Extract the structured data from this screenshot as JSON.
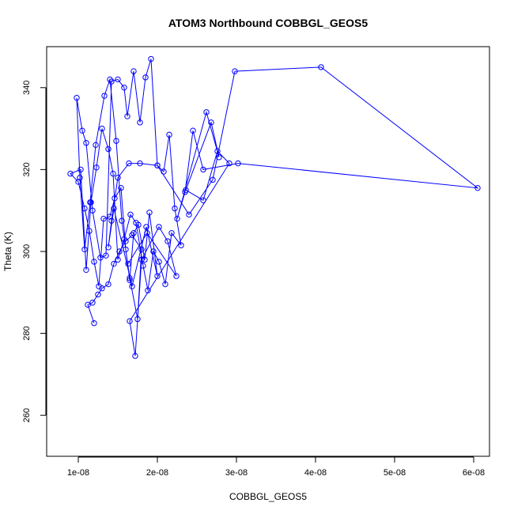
{
  "chart_data": {
    "type": "line",
    "title": "ATOM3 Northbound COBBGL_GEOS5",
    "xlabel": "COBBGL_GEOS5",
    "ylabel": "Theta (K)",
    "xlim": [
      6e-09,
      6.2e-08
    ],
    "ylim": [
      250,
      350
    ],
    "x_ticks": [
      1e-08,
      2e-08,
      3e-08,
      4e-08,
      5e-08,
      6e-08
    ],
    "x_tick_labels": [
      "1e-08",
      "2e-08",
      "3e-08",
      "4e-08",
      "5e-08",
      "6e-08"
    ],
    "y_ticks": [
      260,
      280,
      300,
      320,
      340
    ],
    "y_tick_labels": [
      "260",
      "280",
      "300",
      "320",
      "340"
    ],
    "grid": false,
    "markers": "open-circle",
    "color": "#0000ff",
    "series": [
      {
        "x": [
          1.2e-08,
          1.12e-08,
          1.18e-08,
          1.25e-08,
          1.3e-08,
          1.38e-08,
          1.45e-08,
          1.52e-08,
          1.6e-08,
          1.68e-08,
          1.8e-08,
          1.75e-08,
          1.65e-08,
          1.55e-08,
          1.48e-08,
          1.4e-08,
          1.33e-08,
          1.22e-08,
          1.15e-08,
          1.08e-08,
          1.02e-08,
          9.8e-09,
          1.05e-08,
          1.1e-08,
          1.18e-08,
          1.28e-08,
          1.35e-08,
          1.42e-08,
          1.5e-08,
          1.58e-08,
          1.62e-08,
          1.7e-08,
          1.78e-08,
          1.85e-08,
          1.92e-08,
          2e-08,
          2.08e-08,
          2.15e-08,
          2.22e-08,
          2.3e-08,
          2.18e-08,
          2.1e-08,
          2.02e-08,
          1.95e-08,
          1.88e-08,
          1.82e-08,
          1.73e-08,
          1.66e-08,
          1.58e-08,
          1.5e-08,
          1.44e-08,
          1.38e-08,
          1.3e-08,
          1.23e-08,
          1.16e-08,
          1.1e-08,
          1.03e-08,
          9e-09,
          1e-08,
          1.08e-08,
          1.14e-08,
          1.2e-08,
          1.26e-08,
          1.32e-08,
          1.4e-08,
          1.46e-08,
          1.54e-08,
          1.6e-08,
          1.65e-08,
          1.7e-08,
          1.76e-08,
          1.84e-08,
          1.9e-08,
          2e-08,
          1.86e-08,
          1.68e-08,
          1.45e-08,
          1.38e-08,
          1.42e-08,
          1.5e-08,
          1.64e-08,
          1.78e-08,
          2e-08,
          2.4e-08,
          2.7e-08,
          2.98e-08,
          4.07e-08,
          6.05e-08,
          3.02e-08,
          2.58e-08,
          2.45e-08,
          2.35e-08,
          2.25e-08,
          2.62e-08,
          2.78e-08,
          2.68e-08,
          2.36e-08,
          2.58e-08,
          2.76e-08,
          2.91e-08,
          1.65e-08,
          1.72e-08,
          1.8e-08,
          2.02e-08,
          2.13e-08,
          2.24e-08,
          1.87e-08,
          1.63e-08
        ],
        "y": [
          282.5,
          287.0,
          287.5,
          289.5,
          291.0,
          292.0,
          297.0,
          300.0,
          302.5,
          304.0,
          300.5,
          283.5,
          293.5,
          307.5,
          327.0,
          342.0,
          338.0,
          326.0,
          312.0,
          300.5,
          318.0,
          337.5,
          329.5,
          326.5,
          310.0,
          298.5,
          299.0,
          341.5,
          342.0,
          340.0,
          333.0,
          344.0,
          331.5,
          342.5,
          347.0,
          321.0,
          319.5,
          328.5,
          310.5,
          301.5,
          304.5,
          292.0,
          297.5,
          300.0,
          290.5,
          296.5,
          307.0,
          309.0,
          303.0,
          298.0,
          319.0,
          325.0,
          330.0,
          320.5,
          312.0,
          295.5,
          320.0,
          319.0,
          317.0,
          310.5,
          305.0,
          297.5,
          291.5,
          308.0,
          308.5,
          313.0,
          315.5,
          300.5,
          293.0,
          304.5,
          306.5,
          298.0,
          309.5,
          294.0,
          306.0,
          291.5,
          310.5,
          301.0,
          307.5,
          318.0,
          321.5,
          321.5,
          321.0,
          309.0,
          317.5,
          344.0,
          345.0,
          315.5,
          321.5,
          320.0,
          329.5,
          314.5,
          308.0,
          334.0,
          323.0,
          331.5,
          315.0,
          312.5,
          324.5,
          321.5,
          283.0,
          274.5,
          298.0,
          306.0,
          302.5,
          294.0,
          304.5,
          297.0
        ]
      }
    ]
  }
}
